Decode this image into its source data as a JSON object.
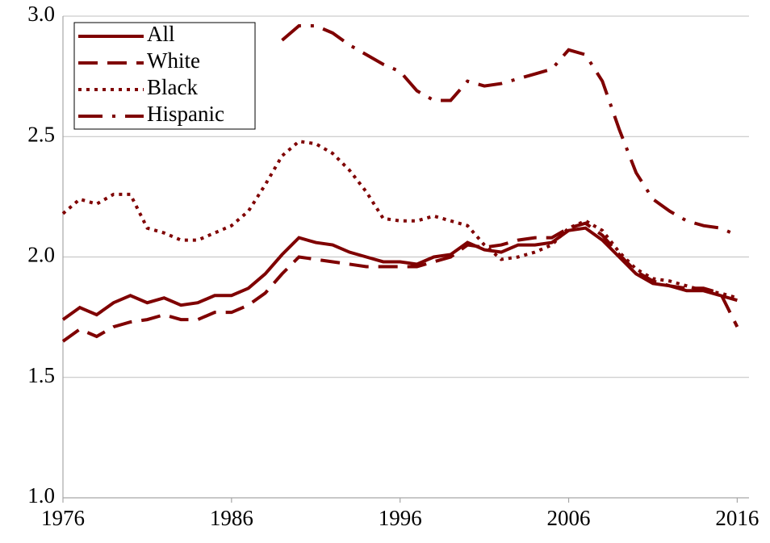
{
  "chart_data": {
    "type": "line",
    "x": [
      1976,
      1977,
      1978,
      1979,
      1980,
      1981,
      1982,
      1983,
      1984,
      1985,
      1986,
      1987,
      1988,
      1989,
      1990,
      1991,
      1992,
      1993,
      1994,
      1995,
      1996,
      1997,
      1998,
      1999,
      2000,
      2001,
      2002,
      2003,
      2004,
      2005,
      2006,
      2007,
      2008,
      2009,
      2010,
      2011,
      2012,
      2013,
      2014,
      2015,
      2016
    ],
    "xlim": [
      1976,
      2016.7
    ],
    "xticks": [
      1976,
      1986,
      1996,
      2006,
      2016
    ],
    "ylim": [
      1.0,
      3.0
    ],
    "yticks": [
      {
        "value": 1.0,
        "label": "1.0"
      },
      1.5,
      {
        "value": 2.0,
        "label": "2.0"
      },
      2.5,
      {
        "value": 3.0,
        "label": "3.0"
      }
    ],
    "grid": true,
    "legend": "top-left",
    "series": [
      {
        "name": "All",
        "color": "#7f0000",
        "style": "solid",
        "values": [
          1.74,
          1.79,
          1.76,
          1.81,
          1.84,
          1.81,
          1.83,
          1.8,
          1.81,
          1.84,
          1.84,
          1.87,
          1.93,
          2.01,
          2.08,
          2.06,
          2.05,
          2.02,
          2.0,
          1.98,
          1.98,
          1.97,
          2.0,
          2.01,
          2.06,
          2.03,
          2.02,
          2.05,
          2.05,
          2.06,
          2.11,
          2.12,
          2.07,
          2.0,
          1.93,
          1.89,
          1.88,
          1.86,
          1.86,
          1.84,
          1.82
        ]
      },
      {
        "name": "White",
        "color": "#7f0000",
        "style": "dashed",
        "values": [
          1.65,
          1.7,
          1.67,
          1.71,
          1.73,
          1.74,
          1.76,
          1.74,
          1.74,
          1.77,
          1.77,
          1.8,
          1.85,
          1.93,
          2.0,
          1.99,
          1.98,
          1.97,
          1.96,
          1.96,
          1.96,
          1.96,
          1.98,
          2.0,
          2.05,
          2.04,
          2.05,
          2.07,
          2.08,
          2.08,
          2.12,
          2.14,
          2.09,
          2.01,
          1.94,
          1.9,
          1.88,
          1.87,
          1.87,
          1.85,
          1.71
        ]
      },
      {
        "name": "Black",
        "color": "#7f0000",
        "style": "dotted",
        "values": [
          2.18,
          2.24,
          2.22,
          2.26,
          2.26,
          2.12,
          2.1,
          2.07,
          2.07,
          2.1,
          2.13,
          2.19,
          2.3,
          2.42,
          2.48,
          2.47,
          2.43,
          2.36,
          2.27,
          2.16,
          2.15,
          2.15,
          2.17,
          2.15,
          2.13,
          2.05,
          1.99,
          2.0,
          2.02,
          2.05,
          2.12,
          2.15,
          2.11,
          2.02,
          1.95,
          1.91,
          1.9,
          1.88,
          1.86,
          1.85,
          1.83
        ]
      },
      {
        "name": "Hispanic",
        "color": "#7f0000",
        "style": "dashdot",
        "values": [
          null,
          null,
          null,
          null,
          null,
          null,
          null,
          null,
          null,
          null,
          null,
          null,
          null,
          2.9,
          2.96,
          2.96,
          2.93,
          2.88,
          2.84,
          2.8,
          2.77,
          2.69,
          2.65,
          2.65,
          2.73,
          2.71,
          2.72,
          2.74,
          2.76,
          2.78,
          2.86,
          2.84,
          2.73,
          2.53,
          2.35,
          2.24,
          2.19,
          2.15,
          2.13,
          2.12,
          2.09
        ]
      }
    ]
  }
}
